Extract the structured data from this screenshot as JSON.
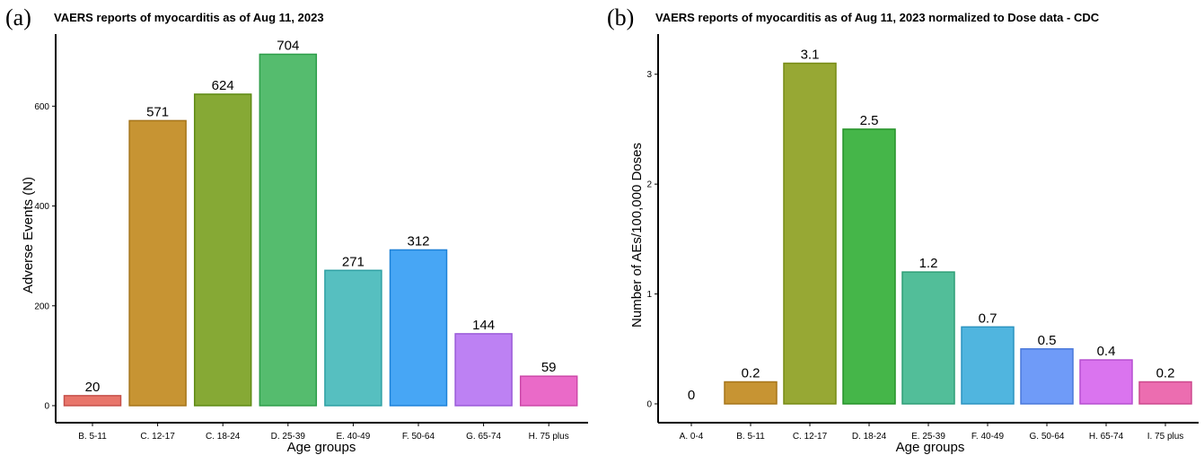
{
  "chart_data": [
    {
      "type": "bar",
      "panel_label": "(a)",
      "title": "VAERS reports of myocarditis as of Aug 11, 2023",
      "xlabel": "Age groups",
      "ylabel": "Adverse Events (N)",
      "ylim": [
        0,
        730
      ],
      "yticks": [
        "0",
        "200",
        "400",
        "600"
      ],
      "categories": [
        "B. 5-11",
        "C. 12-17",
        "C. 18-24",
        "D. 25-39",
        "E. 40-49",
        "F. 50-64",
        "G. 65-74",
        "H. 75 plus"
      ],
      "values": [
        20,
        571,
        624,
        704,
        271,
        312,
        144,
        59
      ],
      "value_labels": [
        "20",
        "571",
        "624",
        "704",
        "271",
        "312",
        "144",
        "59"
      ],
      "colors": [
        "#E8756A",
        "#C79433",
        "#86A935",
        "#55BC6E",
        "#56BFC0",
        "#47A6F5",
        "#BD81F3",
        "#EA6AC8"
      ],
      "edge_colors": [
        "#C5504A",
        "#A6751A",
        "#5F8A15",
        "#2E9E4A",
        "#2FA0A3",
        "#1E82D8",
        "#9A5BD8",
        "#CC48A8"
      ],
      "grid": false
    },
    {
      "type": "bar",
      "panel_label": "(b)",
      "title": "VAERS reports of myocarditis as of Aug 11, 2023 normalized to Dose data - CDC",
      "xlabel": "Age groups",
      "ylabel": "Number of AEs/100,000 Doses",
      "ylim": [
        0,
        3.3
      ],
      "yticks": [
        "0",
        "1",
        "2",
        "3"
      ],
      "categories": [
        "A. 0-4",
        "B. 5-11",
        "C. 12-17",
        "D. 18-24",
        "E. 25-39",
        "F. 40-49",
        "G. 50-64",
        "H. 65-74",
        "I. 75 plus"
      ],
      "values": [
        0,
        0.2,
        3.1,
        2.5,
        1.2,
        0.7,
        0.5,
        0.4,
        0.2
      ],
      "value_labels": [
        "0",
        "0.2",
        "3.1",
        "2.5",
        "1.2",
        "0.7",
        "0.5",
        "0.4",
        "0.2"
      ],
      "colors": [
        "#E8756A",
        "#C79433",
        "#97A834",
        "#45B649",
        "#52BE99",
        "#50B5DF",
        "#6F9BF8",
        "#DA74EF",
        "#EC6DB0"
      ],
      "edge_colors": [
        "#C5504A",
        "#A6751A",
        "#768A14",
        "#259228",
        "#2E9E77",
        "#2B94C0",
        "#4A78DA",
        "#B64FD0",
        "#CC488D"
      ],
      "grid": false
    }
  ]
}
